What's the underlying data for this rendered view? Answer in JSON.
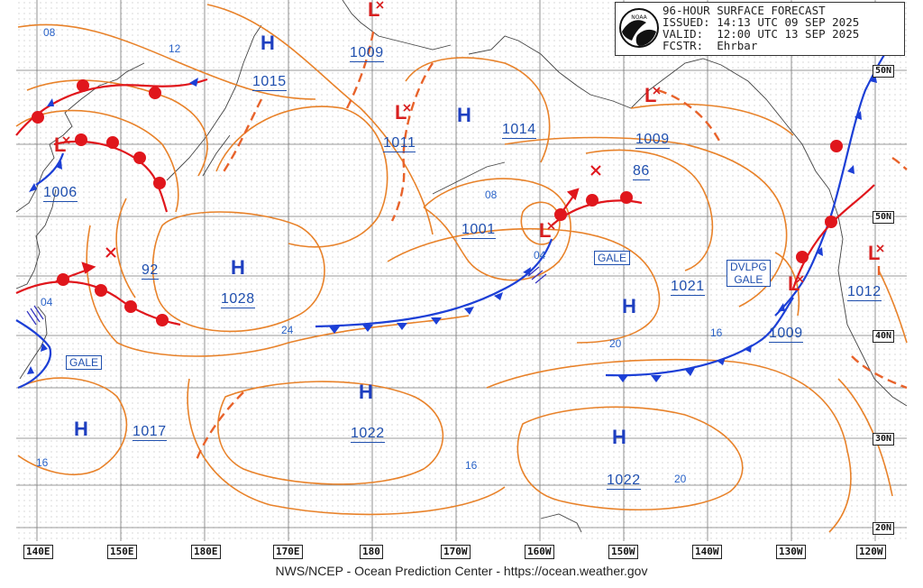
{
  "header": {
    "title": "96-HOUR SURFACE FORECAST",
    "issued": "ISSUED: 14:13 UTC 09 SEP 2025",
    "valid": "VALID:  12:00 UTC 13 SEP 2025",
    "forecaster": "FCSTR:  Ehrbar",
    "logo_text": "NOAA"
  },
  "footer": {
    "text": "NWS/NCEP - Ocean Prediction Center - https://ocean.weather.gov"
  },
  "longitudes": [
    "140E",
    "150E",
    "180E",
    "170E",
    "180",
    "170W",
    "160W",
    "150W",
    "140W",
    "130W",
    "120W"
  ],
  "latitudes": [
    "50N",
    "50N",
    "40N",
    "30N",
    "20N"
  ],
  "colors": {
    "isobar": "#e8822a",
    "high": "#1e3fc0",
    "low": "#d81f1f",
    "cold_front": "#1c3fd6",
    "warm_front": "#e0161c",
    "label": "#1f4fae"
  },
  "highs": [
    "H",
    "H",
    "H",
    "H",
    "H",
    "H",
    "H"
  ],
  "lows": [
    "L",
    "L",
    "L",
    "L",
    "L",
    "L",
    "L"
  ],
  "pressure_labels": [
    "1009",
    "1015",
    "1011",
    "1014",
    "1009",
    "86",
    "1006",
    "1001",
    "92",
    "1028",
    "1021",
    "1012",
    "1009",
    "1017",
    "1022",
    "1022"
  ],
  "isobar_labels": [
    "08",
    "12",
    "08",
    "04",
    "04",
    "24",
    "20",
    "16",
    "16",
    "16",
    "20"
  ],
  "tags": {
    "gale1": "GALE",
    "gale2": "GALE",
    "dvlpg_line1": "DVLPG",
    "dvlpg_line2": "GALE"
  }
}
